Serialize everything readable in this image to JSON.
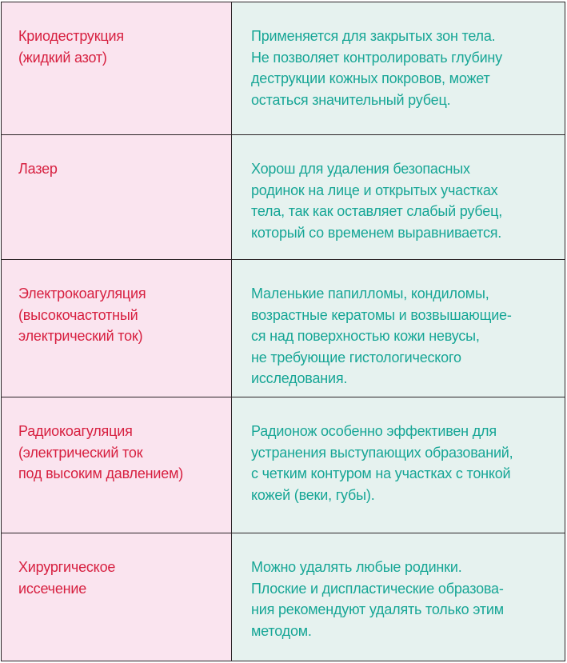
{
  "colors": {
    "method_text": "#d72040",
    "description_text": "#17a696",
    "method_bg": "#fae4ef",
    "description_bg": "#e6f2ef"
  },
  "rows": [
    {
      "method": [
        "Криодеструкция",
        "(жидкий азот)"
      ],
      "description": [
        "Применяется для закрытых зон тела.",
        "Не позволяет контролировать глубину",
        "деструкции кожных покровов, может",
        "остаться значительный рубец."
      ]
    },
    {
      "method": [
        "Лазер"
      ],
      "description": [
        "Хорош для удаления безопасных",
        "родинок на лице и открытых участках",
        "тела, так как оставляет слабый рубец,",
        "который со временем выравнивается."
      ]
    },
    {
      "method": [
        "Электрокоагуляция",
        "(высокочастотный",
        "электрический ток)"
      ],
      "description": [
        "Маленькие папилломы, кондиломы,",
        "возрастные кератомы и возвышающие-",
        "ся над поверхностью кожи невусы,",
        "не требующие гистологического",
        "исследования."
      ]
    },
    {
      "method": [
        "Радиокоагуляция",
        "(электрический ток",
        "под высоким давлением)"
      ],
      "description": [
        "Радионож особенно эффективен для",
        "устранения выступающих образований,",
        "с четким контуром на участках с тонкой",
        "кожей (веки, губы)."
      ]
    },
    {
      "method": [
        "Хирургическое",
        "иссечение"
      ],
      "description": [
        "Можно удалять любые родинки.",
        "Плоские и диспластические образова-",
        "ния рекомендуют удалять только этим",
        "методом."
      ]
    }
  ]
}
